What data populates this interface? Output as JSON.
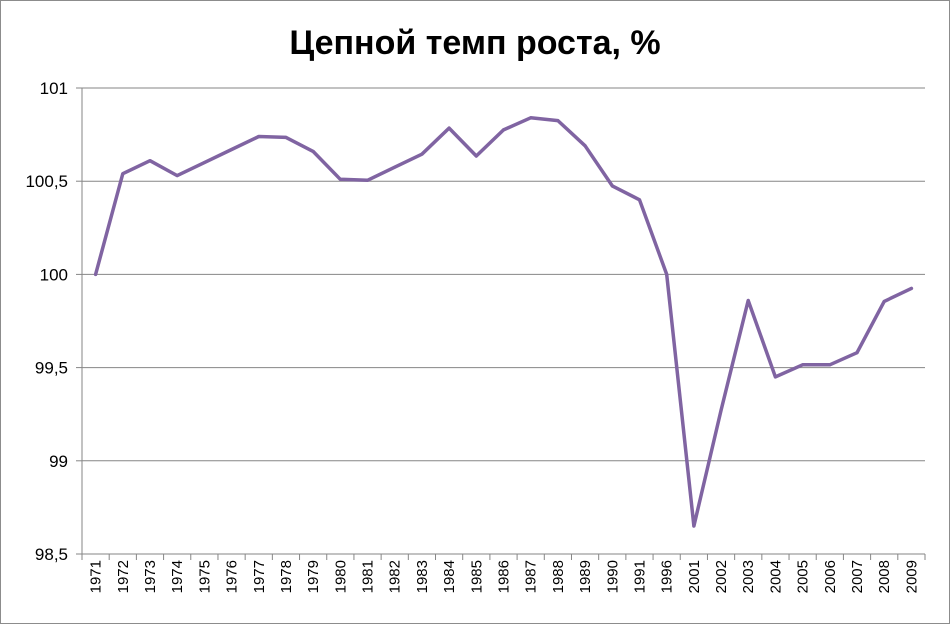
{
  "chart_data": {
    "type": "line",
    "title": "Цепной темп роста, %",
    "xlabel": "",
    "ylabel": "",
    "ylim": [
      98.5,
      101
    ],
    "yticks": [
      "98,5",
      "99",
      "99,5",
      "100",
      "100,5",
      "101"
    ],
    "ytick_values": [
      98.5,
      99,
      99.5,
      100,
      100.5,
      101
    ],
    "grid": true,
    "legend": "none",
    "categories": [
      "1971",
      "1972",
      "1973",
      "1974",
      "1975",
      "1976",
      "1977",
      "1978",
      "1979",
      "1980",
      "1981",
      "1982",
      "1983",
      "1984",
      "1985",
      "1986",
      "1987",
      "1988",
      "1989",
      "1990",
      "1991",
      "1996",
      "2001",
      "2002",
      "2003",
      "2004",
      "2005",
      "2006",
      "2007",
      "2008",
      "2009"
    ],
    "series": [
      {
        "color": "#8064a2",
        "values": [
          100.0,
          100.54,
          100.61,
          100.53,
          100.6,
          100.67,
          100.74,
          100.735,
          100.66,
          100.51,
          100.505,
          100.575,
          100.645,
          100.785,
          100.635,
          100.775,
          100.84,
          100.825,
          100.69,
          100.475,
          100.4,
          100.0,
          98.65,
          99.27,
          99.86,
          99.45,
          99.515,
          99.515,
          99.58,
          99.855,
          99.925
        ]
      }
    ]
  }
}
